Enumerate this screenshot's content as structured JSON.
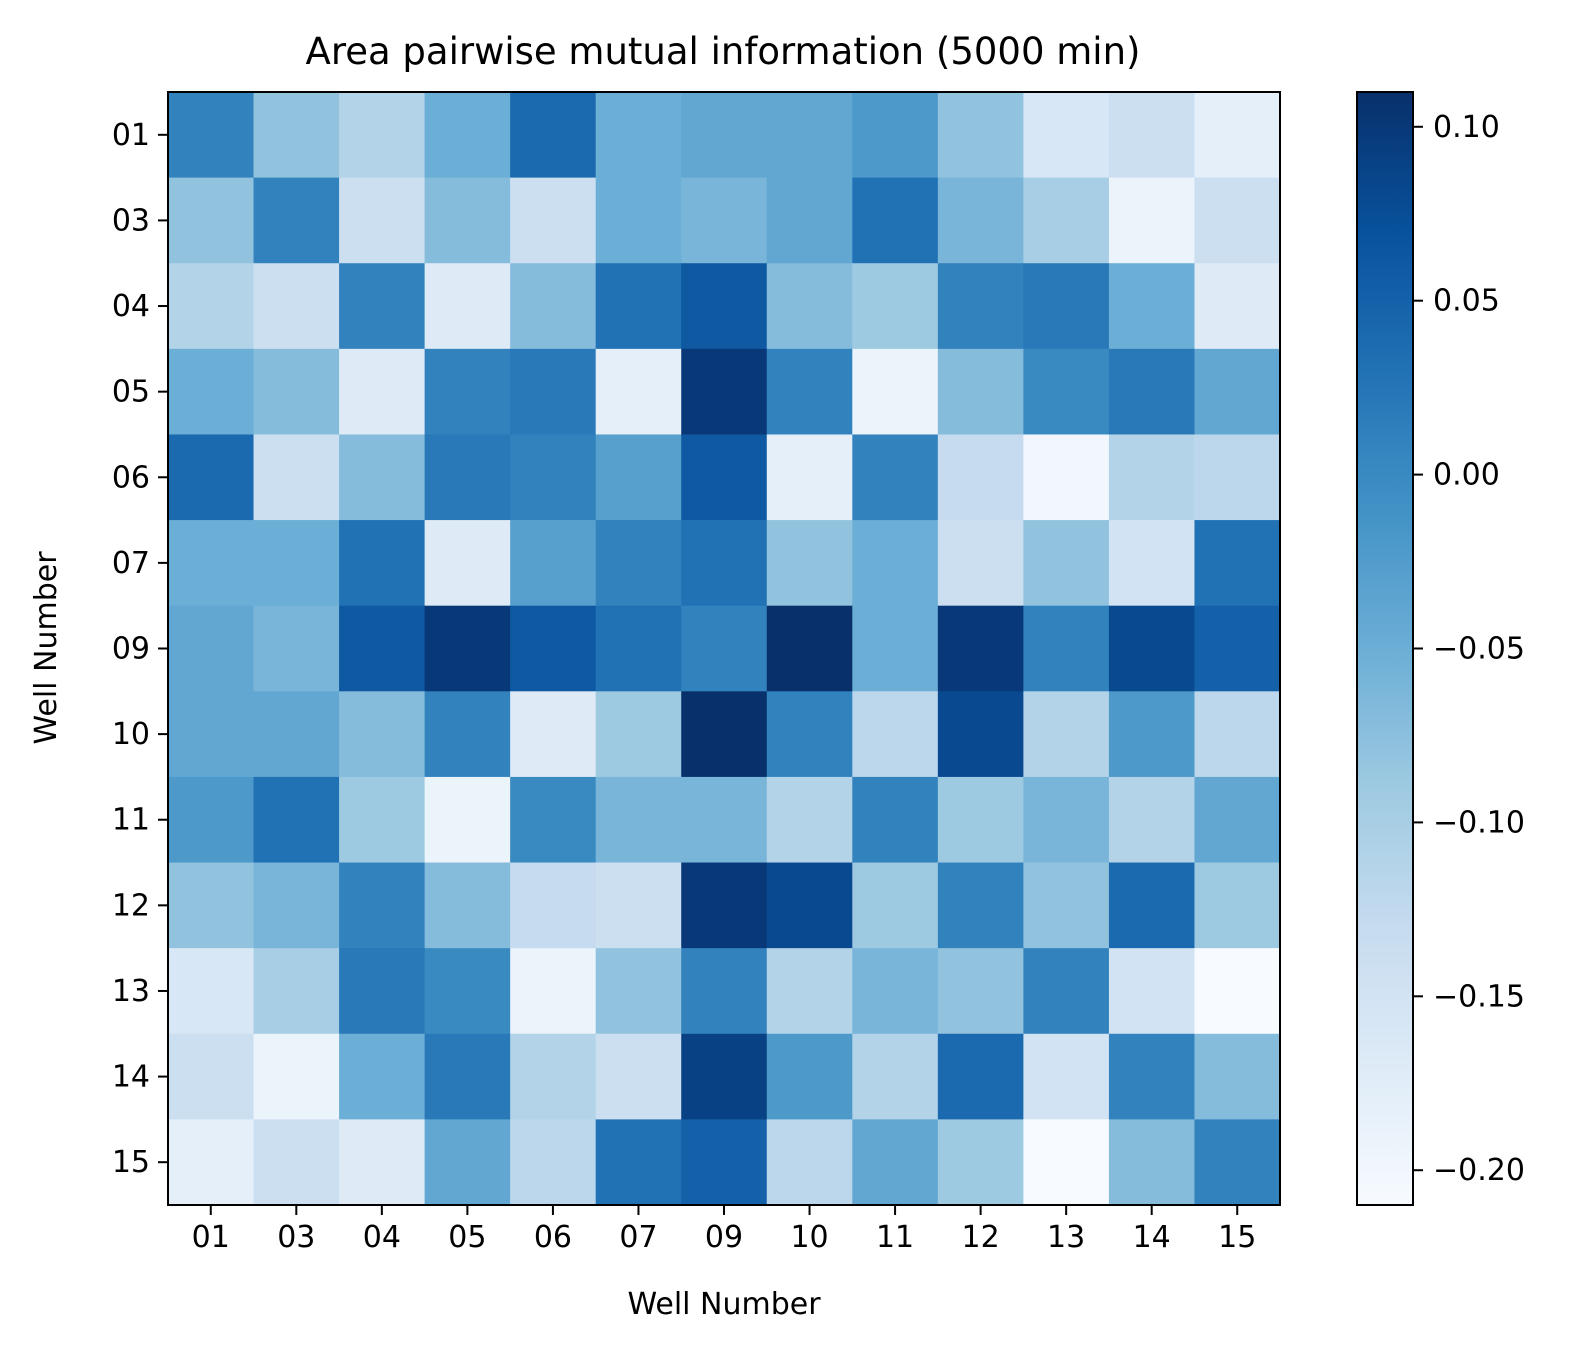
{
  "chart_data": {
    "type": "heatmap",
    "title": "Area pairwise mutual information (5000 min)",
    "xlabel": "Well Number",
    "ylabel": "Well Number",
    "x_categories": [
      "01",
      "03",
      "04",
      "05",
      "06",
      "07",
      "09",
      "10",
      "11",
      "12",
      "13",
      "14",
      "15"
    ],
    "y_categories": [
      "01",
      "03",
      "04",
      "05",
      "06",
      "07",
      "09",
      "10",
      "11",
      "12",
      "13",
      "14",
      "15"
    ],
    "values": [
      [
        0.01,
        -0.08,
        -0.11,
        -0.05,
        0.04,
        -0.05,
        -0.04,
        -0.04,
        -0.02,
        -0.08,
        -0.16,
        -0.14,
        -0.18
      ],
      [
        -0.08,
        0.01,
        -0.14,
        -0.07,
        -0.14,
        -0.05,
        -0.06,
        -0.04,
        0.03,
        -0.06,
        -0.1,
        -0.19,
        -0.14
      ],
      [
        -0.11,
        -0.14,
        0.01,
        -0.17,
        -0.07,
        0.03,
        0.06,
        -0.07,
        -0.09,
        0.01,
        0.02,
        -0.05,
        -0.17
      ],
      [
        -0.05,
        -0.07,
        -0.17,
        0.01,
        0.02,
        -0.18,
        0.1,
        0.01,
        -0.19,
        -0.07,
        0.0,
        0.02,
        -0.04
      ],
      [
        0.04,
        -0.14,
        -0.07,
        0.02,
        0.01,
        -0.03,
        0.06,
        -0.18,
        0.01,
        -0.13,
        -0.2,
        -0.11,
        -0.12
      ],
      [
        -0.05,
        -0.05,
        0.03,
        -0.17,
        -0.03,
        0.01,
        0.03,
        -0.08,
        -0.05,
        -0.14,
        -0.08,
        -0.15,
        0.03
      ],
      [
        -0.04,
        -0.06,
        0.06,
        0.1,
        0.06,
        0.03,
        0.01,
        0.11,
        -0.05,
        0.1,
        0.01,
        0.08,
        0.05
      ],
      [
        -0.04,
        -0.04,
        -0.07,
        0.01,
        -0.17,
        -0.09,
        0.11,
        0.01,
        -0.12,
        0.08,
        -0.11,
        -0.02,
        -0.12
      ],
      [
        -0.02,
        0.03,
        -0.09,
        -0.19,
        0.0,
        -0.06,
        -0.06,
        -0.11,
        0.01,
        -0.09,
        -0.06,
        -0.11,
        -0.04
      ],
      [
        -0.08,
        -0.06,
        0.01,
        -0.07,
        -0.13,
        -0.14,
        0.1,
        0.08,
        -0.09,
        0.01,
        -0.08,
        0.04,
        -0.09
      ],
      [
        -0.16,
        -0.1,
        0.02,
        0.0,
        -0.19,
        -0.08,
        0.01,
        -0.11,
        -0.06,
        -0.08,
        0.01,
        -0.15,
        -0.21
      ],
      [
        -0.14,
        -0.19,
        -0.05,
        0.02,
        -0.11,
        -0.14,
        0.09,
        -0.02,
        -0.11,
        0.04,
        -0.15,
        0.01,
        -0.07
      ],
      [
        -0.18,
        -0.14,
        -0.17,
        -0.04,
        -0.12,
        0.03,
        0.05,
        -0.12,
        -0.04,
        -0.09,
        -0.21,
        -0.07,
        0.01
      ]
    ],
    "colorbar": {
      "vmin": -0.21,
      "vmax": 0.11,
      "ticks": [
        "0.10",
        "0.05",
        "0.00",
        "−0.05",
        "−0.10",
        "−0.15",
        "−0.20"
      ],
      "tick_values": [
        0.1,
        0.05,
        0.0,
        -0.05,
        -0.1,
        -0.15,
        -0.2
      ],
      "colormap": "Blues"
    },
    "grid": false
  }
}
